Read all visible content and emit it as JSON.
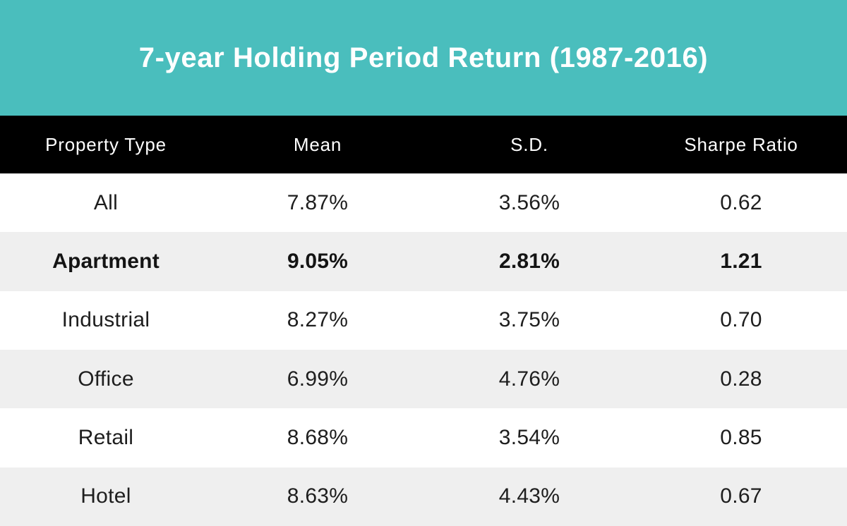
{
  "banner": {
    "title": "7-year Holding Period Return (1987-2016)"
  },
  "chart_data": {
    "type": "table",
    "title": "7-year Holding Period Return (1987-2016)",
    "columns": [
      "Property Type",
      "Mean",
      "S.D.",
      "Sharpe Ratio"
    ],
    "rows": [
      {
        "cells": [
          "All",
          "7.87%",
          "3.56%",
          "0.62"
        ],
        "bold": false
      },
      {
        "cells": [
          "Apartment",
          "9.05%",
          "2.81%",
          "1.21"
        ],
        "bold": true
      },
      {
        "cells": [
          "Industrial",
          "8.27%",
          "3.75%",
          "0.70"
        ],
        "bold": false
      },
      {
        "cells": [
          "Office",
          "6.99%",
          "4.76%",
          "0.28"
        ],
        "bold": false
      },
      {
        "cells": [
          "Retail",
          "8.68%",
          "3.54%",
          "0.85"
        ],
        "bold": false
      },
      {
        "cells": [
          "Hotel",
          "8.63%",
          "4.43%",
          "0.67"
        ],
        "bold": false
      }
    ],
    "highlighted_row": "Apartment",
    "layout_hints": {
      "columns_equal_width": true,
      "text_alignment": "center",
      "alternating_row_shading": true
    }
  },
  "colors": {
    "banner_background": "#4ABEBD",
    "banner_text": "#FFFFFF",
    "header_background": "#000000",
    "header_text": "#FFFFFF",
    "row_background": "#FFFFFF",
    "row_alt_background": "#EFEFEF",
    "body_text": "#1E1E1E"
  }
}
